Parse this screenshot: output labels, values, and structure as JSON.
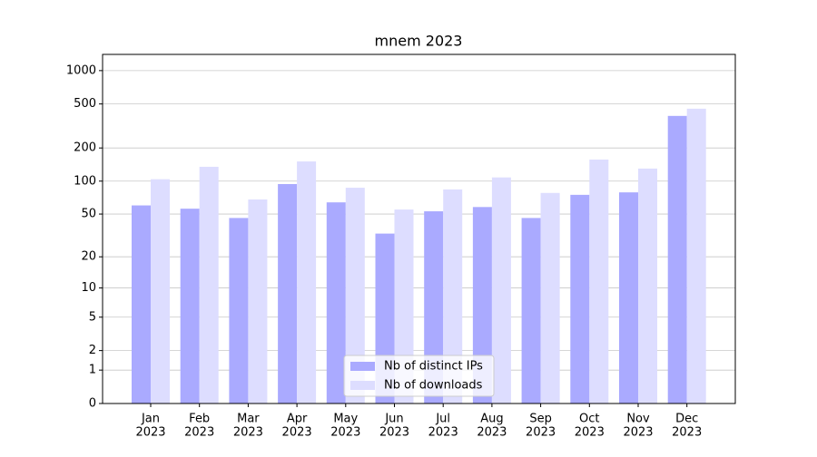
{
  "chart_data": {
    "type": "bar",
    "title": "mnem 2023",
    "categories": [
      [
        "Jan",
        "2023"
      ],
      [
        "Feb",
        "2023"
      ],
      [
        "Mar",
        "2023"
      ],
      [
        "Apr",
        "2023"
      ],
      [
        "May",
        "2023"
      ],
      [
        "Jun",
        "2023"
      ],
      [
        "Jul",
        "2023"
      ],
      [
        "Aug",
        "2023"
      ],
      [
        "Sep",
        "2023"
      ],
      [
        "Oct",
        "2023"
      ],
      [
        "Nov",
        "2023"
      ],
      [
        "Dec",
        "2023"
      ]
    ],
    "series": [
      {
        "name": "Nb of distinct IPs",
        "color": "#aaaaff",
        "values": [
          60,
          56,
          46,
          94,
          64,
          33,
          53,
          58,
          46,
          75,
          79,
          390
        ]
      },
      {
        "name": "Nb of downloads",
        "color": "#ddddff",
        "values": [
          104,
          135,
          68,
          151,
          87,
          55,
          84,
          108,
          78,
          157,
          130,
          453
        ]
      }
    ],
    "yscale": "log1p",
    "ylim": [
      0,
      1400
    ],
    "yticks": [
      0,
      1,
      2,
      5,
      10,
      20,
      50,
      100,
      200,
      500,
      1000
    ],
    "grid": true,
    "legend": "lower center"
  }
}
